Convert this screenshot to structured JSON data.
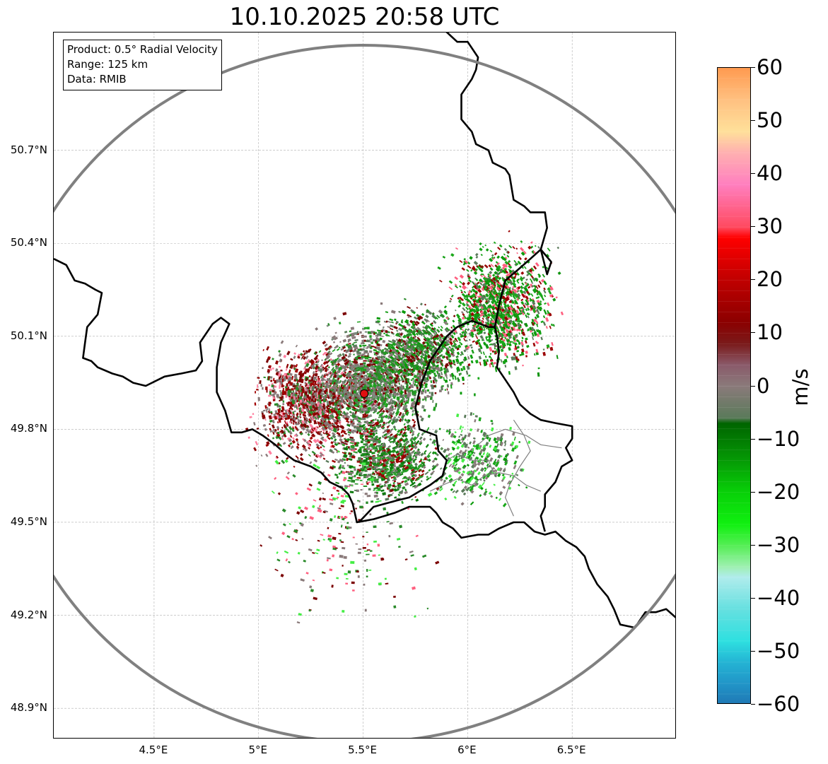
{
  "title": "10.10.2025 20:58 UTC",
  "info_box": {
    "product": "Product: 0.5° Radial Velocity",
    "range": "Range: 125 km",
    "source": "Data: RMIB"
  },
  "map": {
    "extent": {
      "lon": [
        4.02,
        7.0
      ],
      "lat": [
        48.8,
        51.08
      ]
    },
    "lon_ticks": [
      {
        "value": 4.5,
        "label": "4.5°E"
      },
      {
        "value": 5.0,
        "label": "5°E"
      },
      {
        "value": 5.5,
        "label": "5.5°E"
      },
      {
        "value": 6.0,
        "label": "6°E"
      },
      {
        "value": 6.5,
        "label": "6.5°E"
      }
    ],
    "lat_ticks": [
      {
        "value": 48.9,
        "label": "48.9°N"
      },
      {
        "value": 49.2,
        "label": "49.2°N"
      },
      {
        "value": 49.5,
        "label": "49.5°N"
      },
      {
        "value": 49.8,
        "label": "49.8°N"
      },
      {
        "value": 50.1,
        "label": "50.1°N"
      },
      {
        "value": 50.4,
        "label": "50.4°N"
      },
      {
        "value": 50.7,
        "label": "50.7°N"
      }
    ],
    "radar_site": {
      "lon": 5.505,
      "lat": 49.915
    },
    "range_km": 125,
    "borders": [
      [
        [
          4.02,
          50.35
        ],
        [
          4.08,
          50.33
        ],
        [
          4.12,
          50.28
        ],
        [
          4.17,
          50.27
        ],
        [
          4.22,
          50.25
        ],
        [
          4.25,
          50.24
        ],
        [
          4.23,
          50.17
        ],
        [
          4.18,
          50.13
        ],
        [
          4.17,
          50.08
        ],
        [
          4.16,
          50.03
        ],
        [
          4.2,
          50.02
        ],
        [
          4.23,
          50.0
        ],
        [
          4.3,
          49.98
        ],
        [
          4.35,
          49.97
        ],
        [
          4.4,
          49.95
        ],
        [
          4.46,
          49.94
        ],
        [
          4.55,
          49.97
        ],
        [
          4.63,
          49.98
        ],
        [
          4.7,
          49.99
        ],
        [
          4.73,
          50.02
        ],
        [
          4.72,
          50.08
        ],
        [
          4.78,
          50.14
        ],
        [
          4.82,
          50.16
        ],
        [
          4.86,
          50.14
        ],
        [
          4.82,
          50.08
        ],
        [
          4.8,
          50.0
        ],
        [
          4.8,
          49.92
        ],
        [
          4.84,
          49.86
        ],
        [
          4.87,
          49.79
        ],
        [
          4.92,
          49.79
        ],
        [
          4.97,
          49.8
        ],
        [
          5.02,
          49.78
        ],
        [
          5.08,
          49.75
        ],
        [
          5.13,
          49.72
        ],
        [
          5.17,
          49.7
        ],
        [
          5.25,
          49.68
        ],
        [
          5.3,
          49.66
        ],
        [
          5.34,
          49.63
        ],
        [
          5.4,
          49.61
        ],
        [
          5.43,
          49.59
        ],
        [
          5.45,
          49.56
        ],
        [
          5.47,
          49.5
        ],
        [
          5.55,
          49.51
        ],
        [
          5.6,
          49.52
        ],
        [
          5.65,
          49.53
        ],
        [
          5.72,
          49.55
        ],
        [
          5.76,
          49.55
        ],
        [
          5.82,
          49.55
        ],
        [
          5.85,
          49.53
        ],
        [
          5.88,
          49.5
        ],
        [
          5.93,
          49.48
        ],
        [
          5.97,
          49.45
        ],
        [
          6.05,
          49.46
        ],
        [
          6.1,
          49.46
        ],
        [
          6.15,
          49.48
        ],
        [
          6.22,
          49.5
        ],
        [
          6.27,
          49.5
        ],
        [
          6.32,
          49.47
        ],
        [
          6.37,
          49.46
        ],
        [
          6.42,
          49.47
        ],
        [
          6.47,
          49.44
        ],
        [
          6.52,
          49.42
        ],
        [
          6.56,
          49.39
        ],
        [
          6.58,
          49.35
        ],
        [
          6.62,
          49.3
        ],
        [
          6.67,
          49.26
        ],
        [
          6.7,
          49.22
        ],
        [
          6.73,
          49.17
        ],
        [
          6.8,
          49.16
        ],
        [
          6.85,
          49.21
        ],
        [
          6.9,
          49.21
        ],
        [
          6.95,
          49.22
        ],
        [
          7.0,
          49.19
        ]
      ],
      [
        [
          5.75,
          49.87
        ],
        [
          5.78,
          49.95
        ],
        [
          5.82,
          50.02
        ],
        [
          5.86,
          50.06
        ],
        [
          5.9,
          50.1
        ],
        [
          5.95,
          50.13
        ],
        [
          6.02,
          50.15
        ],
        [
          6.1,
          50.13
        ],
        [
          6.13,
          50.13
        ],
        [
          6.14,
          50.1
        ],
        [
          6.15,
          50.05
        ],
        [
          6.14,
          50.0
        ],
        [
          6.18,
          49.96
        ],
        [
          6.22,
          49.92
        ],
        [
          6.25,
          49.88
        ],
        [
          6.3,
          49.85
        ],
        [
          6.35,
          49.83
        ],
        [
          6.42,
          49.82
        ],
        [
          6.5,
          49.81
        ],
        [
          6.5,
          49.77
        ],
        [
          6.47,
          49.74
        ],
        [
          6.5,
          49.7
        ],
        [
          6.45,
          49.68
        ],
        [
          6.42,
          49.63
        ],
        [
          6.37,
          49.59
        ],
        [
          6.37,
          49.55
        ],
        [
          6.35,
          49.52
        ],
        [
          6.37,
          49.47
        ]
      ],
      [
        [
          5.48,
          49.5
        ],
        [
          5.55,
          49.55
        ],
        [
          5.66,
          49.57
        ],
        [
          5.72,
          49.58
        ],
        [
          5.82,
          49.62
        ],
        [
          5.88,
          49.65
        ],
        [
          5.9,
          49.7
        ],
        [
          5.86,
          49.73
        ],
        [
          5.85,
          49.78
        ],
        [
          5.77,
          49.8
        ],
        [
          5.75,
          49.87
        ]
      ],
      [
        [
          6.13,
          50.13
        ],
        [
          6.15,
          50.2
        ],
        [
          6.18,
          50.28
        ],
        [
          6.25,
          50.32
        ],
        [
          6.3,
          50.35
        ],
        [
          6.35,
          50.38
        ],
        [
          6.4,
          50.34
        ],
        [
          6.38,
          50.3
        ],
        [
          6.35,
          50.38
        ],
        [
          6.38,
          50.45
        ],
        [
          6.37,
          50.5
        ],
        [
          6.3,
          50.5
        ],
        [
          6.27,
          50.52
        ],
        [
          6.22,
          50.54
        ],
        [
          6.2,
          50.62
        ],
        [
          6.18,
          50.64
        ],
        [
          6.12,
          50.66
        ],
        [
          6.1,
          50.7
        ],
        [
          6.04,
          50.72
        ],
        [
          6.02,
          50.76
        ],
        [
          5.97,
          50.8
        ],
        [
          5.97,
          50.88
        ],
        [
          6.02,
          50.93
        ],
        [
          6.04,
          50.96
        ],
        [
          6.05,
          51.0
        ],
        [
          6.0,
          51.05
        ],
        [
          5.95,
          51.05
        ],
        [
          5.87,
          51.1
        ]
      ]
    ],
    "thin_borders": [
      [
        [
          5.82,
          49.6
        ],
        [
          5.88,
          49.62
        ],
        [
          5.95,
          49.64
        ],
        [
          6.02,
          49.62
        ],
        [
          6.08,
          49.65
        ],
        [
          6.15,
          49.66
        ],
        [
          6.22,
          49.65
        ],
        [
          6.28,
          49.62
        ],
        [
          6.35,
          49.6
        ]
      ],
      [
        [
          6.22,
          49.83
        ],
        [
          6.27,
          49.78
        ],
        [
          6.3,
          49.73
        ],
        [
          6.25,
          49.68
        ],
        [
          6.2,
          49.62
        ],
        [
          6.18,
          49.58
        ],
        [
          6.22,
          49.52
        ]
      ],
      [
        [
          6.05,
          49.75
        ],
        [
          6.1,
          49.78
        ],
        [
          6.18,
          49.8
        ],
        [
          6.28,
          49.78
        ],
        [
          6.35,
          49.75
        ],
        [
          6.45,
          49.74
        ]
      ],
      [
        [
          5.9,
          49.7
        ],
        [
          5.95,
          49.72
        ],
        [
          6.02,
          49.7
        ],
        [
          6.1,
          49.7
        ],
        [
          6.13,
          49.65
        ]
      ]
    ],
    "echo_regions": [
      {
        "lon": 5.25,
        "lat": 49.88,
        "rlon": 0.34,
        "rlat": 0.22,
        "count": 1400,
        "colors": [
          "#7b0000",
          "#8c0000",
          "#a00000",
          "#8a7a7a",
          "#857777",
          "#2a8a2a",
          "#ff7f9f"
        ]
      },
      {
        "lon": 5.55,
        "lat": 49.95,
        "rlon": 0.35,
        "rlat": 0.24,
        "count": 1600,
        "colors": [
          "#8a7a7a",
          "#857575",
          "#7d8a7d",
          "#5a7a5a",
          "#2a8a2a",
          "#1f9f1f",
          "#7b0000"
        ]
      },
      {
        "lon": 5.78,
        "lat": 50.05,
        "rlon": 0.3,
        "rlat": 0.2,
        "count": 900,
        "colors": [
          "#8a7a7a",
          "#5a7a5a",
          "#1fa01f",
          "#0a9a0a",
          "#7b0000",
          "#2a8a2a"
        ]
      },
      {
        "lon": 5.62,
        "lat": 49.7,
        "rlon": 0.34,
        "rlat": 0.17,
        "count": 900,
        "colors": [
          "#8a7a7a",
          "#5a7a5a",
          "#1a8a1a",
          "#0a7a0a",
          "#2aa02a",
          "#9a0000"
        ]
      },
      {
        "lon": 6.15,
        "lat": 50.2,
        "rlon": 0.33,
        "rlat": 0.26,
        "count": 1300,
        "colors": [
          "#0a9a0a",
          "#14a014",
          "#0f940f",
          "#1aa81a",
          "#5a7a5a",
          "#ff5f7f",
          "#9a0000"
        ]
      },
      {
        "lon": 6.05,
        "lat": 49.7,
        "rlon": 0.28,
        "rlat": 0.18,
        "count": 350,
        "colors": [
          "#0a9a0a",
          "#5a7a5a",
          "#8a7a7a",
          "#1aa81a",
          "#44ee44"
        ]
      },
      {
        "lon": 5.42,
        "lat": 49.5,
        "rlon": 0.55,
        "rlat": 0.45,
        "count": 260,
        "colors": [
          "#8a7a7a",
          "#2a8a2a",
          "#7b0000",
          "#ff5f7f",
          "#44ee44"
        ]
      }
    ]
  },
  "colorbar": {
    "label": "m/s",
    "vmin": -60,
    "vmax": 60,
    "ticks": [
      {
        "value": 60,
        "label": "60"
      },
      {
        "value": 50,
        "label": "50"
      },
      {
        "value": 40,
        "label": "40"
      },
      {
        "value": 30,
        "label": "30"
      },
      {
        "value": 20,
        "label": "20"
      },
      {
        "value": 10,
        "label": "10"
      },
      {
        "value": 0,
        "label": "0"
      },
      {
        "value": -10,
        "label": "−10"
      },
      {
        "value": -20,
        "label": "−20"
      },
      {
        "value": -30,
        "label": "−30"
      },
      {
        "value": -40,
        "label": "−40"
      },
      {
        "value": -50,
        "label": "−50"
      },
      {
        "value": -60,
        "label": "−60"
      }
    ],
    "stops": [
      {
        "value": -60,
        "color": "#1f77b4"
      },
      {
        "value": -56,
        "color": "#2196c8"
      },
      {
        "value": -52,
        "color": "#24b4d4"
      },
      {
        "value": -48,
        "color": "#2ee0e0"
      },
      {
        "value": -42,
        "color": "#66e0e0"
      },
      {
        "value": -36,
        "color": "#b0ecec"
      },
      {
        "value": -34,
        "color": "#9ef0b0"
      },
      {
        "value": -30,
        "color": "#55ee55"
      },
      {
        "value": -26,
        "color": "#10f010"
      },
      {
        "value": -20,
        "color": "#08d008"
      },
      {
        "value": -14,
        "color": "#059a05"
      },
      {
        "value": -7,
        "color": "#006400"
      },
      {
        "value": -6,
        "color": "#5a7a5a"
      },
      {
        "value": 0,
        "color": "#8a7a7a"
      },
      {
        "value": 4,
        "color": "#8a5a6a"
      },
      {
        "value": 8,
        "color": "#7a1a1a"
      },
      {
        "value": 12,
        "color": "#8b0000"
      },
      {
        "value": 20,
        "color": "#c00000"
      },
      {
        "value": 28,
        "color": "#ff0000"
      },
      {
        "value": 30,
        "color": "#ff4a60"
      },
      {
        "value": 38,
        "color": "#ff7fbf"
      },
      {
        "value": 44,
        "color": "#ffb0b0"
      },
      {
        "value": 48,
        "color": "#ffe09a"
      },
      {
        "value": 54,
        "color": "#ffc080"
      },
      {
        "value": 60,
        "color": "#ff9a50"
      }
    ]
  }
}
